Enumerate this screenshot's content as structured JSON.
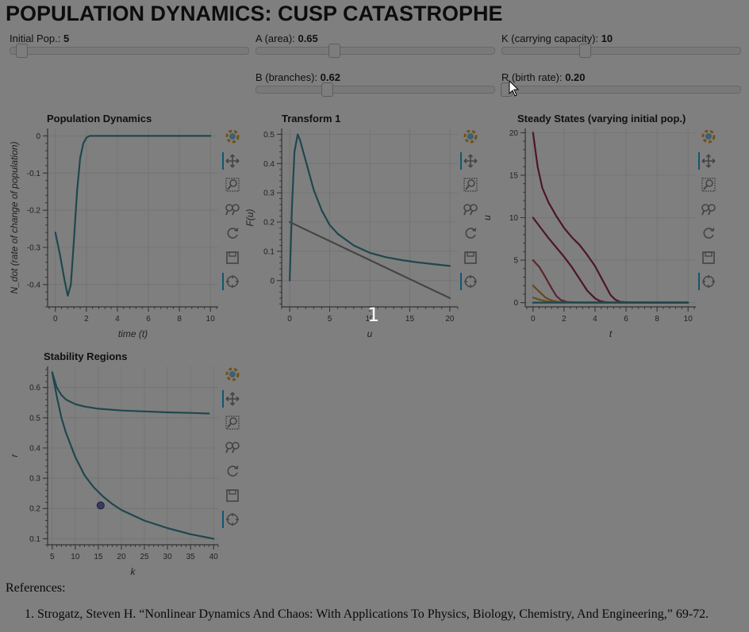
{
  "title": "POPULATION DYNAMICS: CUSP CATASTROPHE",
  "sliders": [
    {
      "label": "Initial Pop.: ",
      "value": "5",
      "fraction": 0.03
    },
    {
      "label": "A (area): ",
      "value": "0.65",
      "fraction": 0.31
    },
    {
      "label": "K (carrying capacity): ",
      "value": "10",
      "fraction": 0.33
    },
    {
      "label": "B (branches): ",
      "value": "0.62",
      "fraction": 0.28
    },
    {
      "label": "R (birth rate): ",
      "value": "0.20",
      "fraction": 0.0
    }
  ],
  "toolbar_icons": [
    "bokeh-logo-icon",
    "pan-icon",
    "box-zoom-icon",
    "wheel-zoom-icon",
    "reset-icon",
    "save-icon",
    "hover-icon"
  ],
  "chart_data": [
    {
      "type": "line",
      "title": "Population Dynamics",
      "xlabel": "time (t)",
      "ylabel": "N_dot (rate of change of population)",
      "xlim": [
        -0.5,
        10.5
      ],
      "ylim": [
        -0.46,
        0.02
      ],
      "xticks": [
        "0",
        "2",
        "4",
        "6",
        "8",
        "10"
      ],
      "yticks": [
        "0",
        "-0.1",
        "-0.2",
        "-0.3",
        "-0.4"
      ],
      "series": [
        {
          "color": "#3f8f9c",
          "x": [
            0,
            0.3,
            0.6,
            0.8,
            1.0,
            1.2,
            1.4,
            1.6,
            1.8,
            2.0,
            2.2,
            2.5,
            3,
            4,
            5,
            6,
            7,
            8,
            9,
            10
          ],
          "y": [
            -0.26,
            -0.32,
            -0.39,
            -0.43,
            -0.4,
            -0.28,
            -0.15,
            -0.06,
            -0.02,
            -0.005,
            0,
            0,
            0,
            0,
            0,
            0,
            0,
            0,
            0,
            0
          ]
        }
      ]
    },
    {
      "type": "line",
      "title": "Transform 1",
      "xlabel": "u",
      "ylabel": "F(u)",
      "xlim": [
        -1,
        21
      ],
      "ylim": [
        -0.09,
        0.52
      ],
      "xticks": [
        "0",
        "5",
        "10",
        "15",
        "20"
      ],
      "yticks": [
        "0",
        "0.1",
        "0.2",
        "0.3",
        "0.4",
        "0.5"
      ],
      "series": [
        {
          "color": "#3f8f9c",
          "x": [
            0,
            0.3,
            0.6,
            1,
            1.3,
            1.7,
            2,
            3,
            4,
            5,
            6,
            8,
            10,
            12,
            14,
            16,
            18,
            20
          ],
          "y": [
            0,
            0.26,
            0.44,
            0.5,
            0.48,
            0.44,
            0.41,
            0.31,
            0.24,
            0.19,
            0.16,
            0.12,
            0.095,
            0.08,
            0.07,
            0.062,
            0.056,
            0.05
          ]
        },
        {
          "color": "#8a8a8a",
          "x": [
            0,
            20
          ],
          "y": [
            0.2,
            -0.06
          ]
        }
      ]
    },
    {
      "type": "line",
      "title": "Steady States (varying initial pop.)",
      "xlabel": "t",
      "ylabel": "u",
      "xlim": [
        -0.5,
        10.5
      ],
      "ylim": [
        -0.5,
        20.5
      ],
      "xticks": [
        "0",
        "2",
        "4",
        "6",
        "8",
        "10"
      ],
      "yticks": [
        "0",
        "5",
        "10",
        "15",
        "20"
      ],
      "series": [
        {
          "color": "#9b2a55",
          "x": [
            0,
            0.3,
            0.6,
            1,
            1.5,
            2,
            2.5,
            3,
            3.5,
            4,
            4.5,
            5,
            5.3,
            5.6,
            6,
            7,
            8,
            10
          ],
          "y": [
            20,
            16,
            13.5,
            11.8,
            10.2,
            8.8,
            7.7,
            6.8,
            5.6,
            4.3,
            2.6,
            0.9,
            0.35,
            0.1,
            0.05,
            0.02,
            0.01,
            0.01
          ]
        },
        {
          "color": "#9b2a55",
          "x": [
            0,
            0.5,
            1,
            1.5,
            2,
            2.5,
            3,
            3.5,
            4,
            4.3,
            4.6,
            5,
            6,
            8,
            10
          ],
          "y": [
            10,
            8.8,
            7.6,
            6.5,
            5.4,
            4.2,
            2.8,
            1.4,
            0.5,
            0.2,
            0.08,
            0.03,
            0.01,
            0.01,
            0.01
          ]
        },
        {
          "color": "#b84a5c",
          "x": [
            0,
            0.4,
            0.8,
            1.2,
            1.5,
            1.8,
            2.2,
            3,
            5,
            10
          ],
          "y": [
            5,
            4.2,
            3,
            1.7,
            0.8,
            0.3,
            0.08,
            0.02,
            0.01,
            0.01
          ]
        },
        {
          "color": "#d08c3a",
          "x": [
            0,
            0.4,
            0.8,
            1.2,
            1.6,
            2,
            3,
            10
          ],
          "y": [
            2,
            1.3,
            0.6,
            0.25,
            0.1,
            0.04,
            0.01,
            0.01
          ]
        },
        {
          "color": "#c9a23a",
          "x": [
            0,
            0.5,
            1,
            2,
            10
          ],
          "y": [
            0.6,
            0.3,
            0.12,
            0.03,
            0.01
          ]
        },
        {
          "color": "#3f8f9c",
          "x": [
            0,
            10
          ],
          "y": [
            0,
            0
          ]
        }
      ]
    },
    {
      "type": "line",
      "title": "Stability Regions",
      "xlabel": "k",
      "ylabel": "r",
      "xlim": [
        4,
        41
      ],
      "ylim": [
        0.08,
        0.67
      ],
      "xticks": [
        "5",
        "10",
        "15",
        "20",
        "25",
        "30",
        "35",
        "40"
      ],
      "yticks": [
        "0.1",
        "0.2",
        "0.3",
        "0.4",
        "0.5",
        "0.6"
      ],
      "series": [
        {
          "color": "#3f8f9c",
          "x": [
            5,
            6,
            7,
            8,
            10,
            12,
            15,
            20,
            25,
            30,
            35,
            39
          ],
          "y": [
            0.65,
            0.6,
            0.575,
            0.56,
            0.545,
            0.537,
            0.53,
            0.524,
            0.521,
            0.518,
            0.516,
            0.514
          ]
        },
        {
          "color": "#3f8f9c",
          "x": [
            5,
            6,
            7,
            8,
            10,
            12,
            14,
            16,
            18,
            20,
            25,
            30,
            35,
            40
          ],
          "y": [
            0.65,
            0.57,
            0.5,
            0.45,
            0.37,
            0.31,
            0.27,
            0.24,
            0.215,
            0.195,
            0.16,
            0.135,
            0.115,
            0.1
          ]
        }
      ],
      "marker": {
        "x": 15.5,
        "y": 0.21,
        "color": "#3b3f9a"
      }
    }
  ],
  "overlay_counter": "1",
  "references": {
    "heading": "References:",
    "items": [
      "Strogatz, Steven H. “Nonlinear Dynamics And Chaos: With Applications To Physics, Biology, Chemistry, And Engineering,” 69-72."
    ]
  }
}
